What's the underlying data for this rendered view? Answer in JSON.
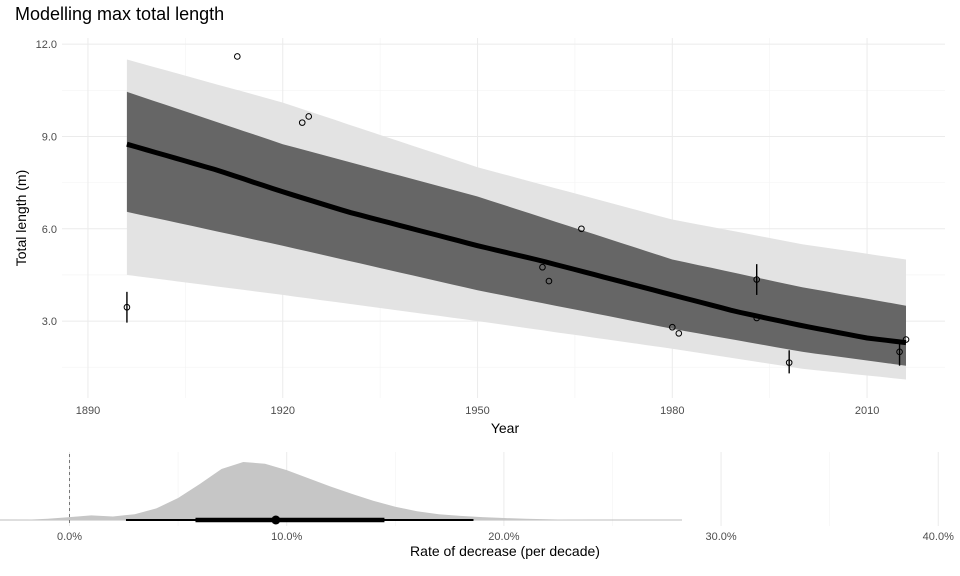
{
  "chart_data": [
    {
      "type": "line",
      "title": "Modelling max total length",
      "xlabel": "Year",
      "ylabel": "Total length (m)",
      "xlim": [
        1886,
        2022
      ],
      "ylim": [
        0.5,
        12.2
      ],
      "x_ticks": [
        1890,
        1920,
        1950,
        1980,
        2010
      ],
      "x_tick_labels": [
        "1890",
        "1920",
        "1950",
        "1980",
        "2010"
      ],
      "y_ticks": [
        3.0,
        6.0,
        9.0,
        12.0
      ],
      "y_tick_labels": [
        "3.0",
        "6.0",
        "9.0",
        "12.0"
      ],
      "grid": true,
      "series": [
        {
          "role": "fit",
          "x": [
            1896,
            1910,
            1920,
            1930,
            1940,
            1950,
            1960,
            1970,
            1980,
            1990,
            2000,
            2010,
            2016
          ],
          "y": [
            8.75,
            7.9,
            7.2,
            6.55,
            6.0,
            5.45,
            4.95,
            4.4,
            3.85,
            3.3,
            2.85,
            2.45,
            2.3
          ]
        },
        {
          "role": "interval-80",
          "x": [
            1896,
            1920,
            1950,
            1980,
            2000,
            2016
          ],
          "upper": [
            10.45,
            8.75,
            7.05,
            5.0,
            4.1,
            3.5
          ],
          "lower": [
            6.55,
            5.45,
            4.0,
            2.75,
            2.0,
            1.55
          ]
        },
        {
          "role": "interval-95",
          "x": [
            1896,
            1920,
            1950,
            1980,
            2000,
            2016
          ],
          "upper": [
            11.5,
            10.1,
            8.0,
            6.3,
            5.5,
            5.0
          ],
          "lower": [
            4.5,
            3.85,
            3.0,
            2.1,
            1.45,
            1.1
          ]
        },
        {
          "role": "observations",
          "x": [
            1896,
            1913,
            1923,
            1924,
            1960,
            1961,
            1966,
            1980,
            1981,
            1993,
            1993,
            1998,
            2015,
            2016
          ],
          "y": [
            3.45,
            11.6,
            9.45,
            9.65,
            4.75,
            4.3,
            6.0,
            2.8,
            2.6,
            4.35,
            3.1,
            1.65,
            2.0,
            2.4
          ],
          "err_low": [
            2.95,
            null,
            null,
            null,
            null,
            null,
            null,
            null,
            null,
            3.85,
            null,
            1.3,
            1.55,
            null
          ],
          "err_high": [
            3.95,
            null,
            null,
            null,
            null,
            null,
            null,
            null,
            null,
            4.85,
            null,
            2.05,
            2.4,
            null
          ]
        }
      ]
    },
    {
      "type": "area",
      "xlabel": "Rate of decrease (per decade)",
      "xlim": [
        -0.032,
        0.41
      ],
      "x_ticks": [
        0.0,
        0.1,
        0.2,
        0.3,
        0.4
      ],
      "x_tick_labels": [
        "0.0%",
        "10.0%",
        "20.0%",
        "30.0%",
        "40.0%"
      ],
      "reference_line": 0.0,
      "density": {
        "x": [
          -0.032,
          -0.02,
          -0.01,
          0.0,
          0.01,
          0.02,
          0.03,
          0.04,
          0.05,
          0.06,
          0.07,
          0.08,
          0.09,
          0.1,
          0.11,
          0.12,
          0.13,
          0.14,
          0.15,
          0.16,
          0.17,
          0.18,
          0.19,
          0.2,
          0.21,
          0.22,
          0.23,
          0.235,
          0.24
        ],
        "y": [
          0.0,
          0.005,
          0.02,
          0.05,
          0.08,
          0.06,
          0.1,
          0.2,
          0.38,
          0.62,
          0.88,
          1.0,
          0.97,
          0.86,
          0.72,
          0.58,
          0.45,
          0.33,
          0.23,
          0.15,
          0.1,
          0.07,
          0.05,
          0.035,
          0.02,
          0.012,
          0.006,
          0.003,
          0.0
        ]
      },
      "point_estimate": 0.095,
      "interval_inner": [
        0.058,
        0.145
      ],
      "interval_outer": [
        0.026,
        0.186
      ]
    }
  ]
}
